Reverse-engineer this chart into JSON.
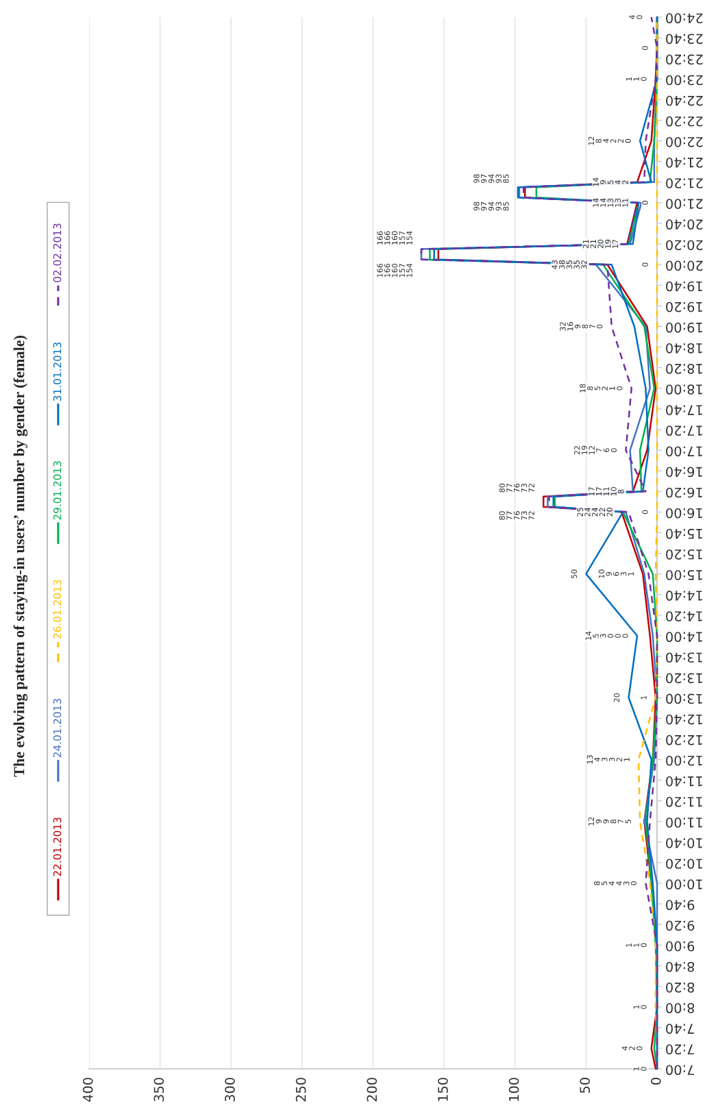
{
  "chart_data": {
    "type": "line",
    "orientation": "horizontal",
    "title": "The evolving pattern of staying-in users’ number by gender (female)",
    "x": [
      7,
      7.3333,
      8,
      9,
      10,
      11,
      12,
      13,
      14,
      15,
      16,
      16.0833,
      16.25,
      16.3333,
      17,
      18,
      19,
      20,
      20.0833,
      20.25,
      20.3333,
      21,
      21.0833,
      21.25,
      21.3333,
      22,
      23,
      23.5,
      24
    ],
    "series": [
      {
        "name": "22.01.2013",
        "color": "#c00000",
        "line_style": "solid",
        "values": [
          1,
          4,
          0,
          0,
          4,
          9,
          3,
          1,
          5,
          10,
          25,
          80,
          80,
          17,
          7,
          1,
          7,
          35,
          154,
          154,
          21,
          14,
          93,
          93,
          14,
          4,
          1,
          0,
          0
        ]
      },
      {
        "name": "24.01.2013",
        "color": "#4472c4",
        "line_style": "solid",
        "values": [
          0,
          0,
          0,
          0,
          0,
          9,
          2,
          0,
          3,
          9,
          22,
          77,
          77,
          17,
          19,
          5,
          8,
          43,
          166,
          166,
          19,
          11,
          97,
          97,
          2,
          2,
          0,
          0,
          0
        ]
      },
      {
        "name": "26.01.2013",
        "color": "#ffc000",
        "line_style": "dashed",
        "values": [
          0,
          0,
          1,
          1,
          5,
          12,
          13,
          1,
          0,
          1,
          0,
          0,
          0,
          0,
          0,
          0,
          0,
          0,
          0,
          0,
          0,
          0,
          0,
          0,
          0,
          0,
          0,
          0,
          0
        ]
      },
      {
        "name": "29.01.2013",
        "color": "#00b050",
        "line_style": "solid",
        "values": [
          0,
          2,
          0,
          1,
          4,
          8,
          3,
          0,
          0,
          3,
          24,
          72,
          72,
          11,
          12,
          2,
          9,
          38,
          160,
          160,
          20,
          13,
          85,
          85,
          5,
          2,
          0,
          0,
          0
        ]
      },
      {
        "name": "31.01.2013",
        "color": "#0070c0",
        "line_style": "solid",
        "values": [
          0,
          0,
          0,
          0,
          3,
          7,
          4,
          20,
          14,
          50,
          24,
          73,
          73,
          10,
          6,
          8,
          16,
          32,
          157,
          157,
          17,
          13,
          98,
          98,
          4,
          12,
          0,
          0,
          0
        ]
      },
      {
        "name": "02.02.2013",
        "color": "#7030a0",
        "line_style": "dashed",
        "values": [
          0,
          0,
          0,
          0,
          8,
          5,
          1,
          0,
          0,
          6,
          20,
          76,
          76,
          8,
          22,
          18,
          32,
          35,
          166,
          166,
          21,
          14,
          94,
          94,
          9,
          8,
          1,
          0,
          4
        ]
      }
    ],
    "xlim": [
      400,
      0
    ],
    "xticks": [
      0,
      50,
      100,
      150,
      200,
      250,
      300,
      350,
      400
    ],
    "ylim": [
      7,
      24
    ],
    "yticks": [
      {
        "value": 7,
        "label": "7:00"
      },
      {
        "value": 7.3333,
        "label": "7:20"
      },
      {
        "value": 7.6667,
        "label": "7:40"
      },
      {
        "value": 8,
        "label": "8:00"
      },
      {
        "value": 8.3333,
        "label": "8:20"
      },
      {
        "value": 8.6667,
        "label": "8:40"
      },
      {
        "value": 9,
        "label": "9:00"
      },
      {
        "value": 9.3333,
        "label": "9:20"
      },
      {
        "value": 9.6667,
        "label": "9:40"
      },
      {
        "value": 10,
        "label": "10:00"
      },
      {
        "value": 10.3333,
        "label": "10:20"
      },
      {
        "value": 10.6667,
        "label": "10:40"
      },
      {
        "value": 11,
        "label": "11:00"
      },
      {
        "value": 11.3333,
        "label": "11:20"
      },
      {
        "value": 11.6667,
        "label": "11:40"
      },
      {
        "value": 12,
        "label": "12:00"
      },
      {
        "value": 12.3333,
        "label": "12:20"
      },
      {
        "value": 12.6667,
        "label": "12:40"
      },
      {
        "value": 13,
        "label": "13:00"
      },
      {
        "value": 13.3333,
        "label": "13:20"
      },
      {
        "value": 13.6667,
        "label": "13:40"
      },
      {
        "value": 14,
        "label": "14:00"
      },
      {
        "value": 14.3333,
        "label": "14:20"
      },
      {
        "value": 14.6667,
        "label": "14:40"
      },
      {
        "value": 15,
        "label": "15:00"
      },
      {
        "value": 15.3333,
        "label": "15:20"
      },
      {
        "value": 15.6667,
        "label": "15:40"
      },
      {
        "value": 16,
        "label": "16:00"
      },
      {
        "value": 16.3333,
        "label": "16:20"
      },
      {
        "value": 16.6667,
        "label": "16:40"
      },
      {
        "value": 17,
        "label": "17:00"
      },
      {
        "value": 17.3333,
        "label": "17:20"
      },
      {
        "value": 17.6667,
        "label": "17:40"
      },
      {
        "value": 18,
        "label": "18:00"
      },
      {
        "value": 18.3333,
        "label": "18:20"
      },
      {
        "value": 18.6667,
        "label": "18:40"
      },
      {
        "value": 19,
        "label": "19:00"
      },
      {
        "value": 19.3333,
        "label": "19:20"
      },
      {
        "value": 19.6667,
        "label": "19:40"
      },
      {
        "value": 20,
        "label": "20:00"
      },
      {
        "value": 20.3333,
        "label": "20:20"
      },
      {
        "value": 20.6667,
        "label": "20:40"
      },
      {
        "value": 21,
        "label": "21:00"
      },
      {
        "value": 21.3333,
        "label": "21:20"
      },
      {
        "value": 21.6667,
        "label": "21:40"
      },
      {
        "value": 22,
        "label": "22:00"
      },
      {
        "value": 22.3333,
        "label": "22:20"
      },
      {
        "value": 22.6667,
        "label": "22:40"
      },
      {
        "value": 23,
        "label": "23:00"
      },
      {
        "value": 23.3333,
        "label": "23:20"
      },
      {
        "value": 23.6667,
        "label": "23:40"
      },
      {
        "value": 24,
        "label": "24:00"
      }
    ],
    "grid": "x",
    "legend": "left",
    "annotations": [
      {
        "text": "1\n0",
        "y": 7,
        "x": 1
      },
      {
        "text": "4\n2\n0",
        "y": 7.3333,
        "x": 4
      },
      {
        "text": "1\n0",
        "y": 8,
        "x": 1
      },
      {
        "text": "1\n1\n0",
        "y": 9,
        "x": 1
      },
      {
        "text": "8\n5\n4\n4\n3\n0",
        "y": 10,
        "x": 8
      },
      {
        "text": "12\n9\n9\n8\n7\n5",
        "y": 11,
        "x": 12
      },
      {
        "text": "13\n4\n3\n3\n2\n1",
        "y": 12,
        "x": 13
      },
      {
        "text": "20",
        "y": 13,
        "x": 20
      },
      {
        "text": "1",
        "y": 13,
        "x": 1
      },
      {
        "text": "14\n5\n3\n0\n0\n0",
        "y": 14,
        "x": 14
      },
      {
        "text": "50",
        "y": 15,
        "x": 50
      },
      {
        "text": "10\n9\n6\n3\n1",
        "y": 15,
        "x": 10
      },
      {
        "text": "25\n24\n24\n22\n20",
        "y": 16,
        "x": 25
      },
      {
        "text": "0",
        "y": 16,
        "x": 0
      },
      {
        "text": "80\n77\n76\n73\n72",
        "y": 16.0833,
        "x": 80
      },
      {
        "text": "80\n77\n76\n73\n72",
        "y": 16.25,
        "x": 80
      },
      {
        "text": "17\n17\n11\n10\n8",
        "y": 16.3333,
        "x": 17
      },
      {
        "text": "22\n19\n12\n7\n6\n0",
        "y": 17,
        "x": 22
      },
      {
        "text": "18\n8\n5\n2\n1\n0",
        "y": 18,
        "x": 18
      },
      {
        "text": "32\n16\n9\n8\n7\n0",
        "y": 19,
        "x": 32
      },
      {
        "text": "43\n38\n35\n35\n32",
        "y": 20,
        "x": 43
      },
      {
        "text": "0",
        "y": 20,
        "x": 0
      },
      {
        "text": "166\n166\n160\n157\n154",
        "y": 20.0833,
        "x": 166
      },
      {
        "text": "166\n166\n160\n157\n154",
        "y": 20.25,
        "x": 166
      },
      {
        "text": "21\n21\n20\n19\n17",
        "y": 20.3333,
        "x": 21
      },
      {
        "text": "14\n14\n13\n13\n11",
        "y": 21,
        "x": 14
      },
      {
        "text": "0",
        "y": 21,
        "x": 0
      },
      {
        "text": "98\n97\n94\n93\n85",
        "y": 21.0833,
        "x": 98
      },
      {
        "text": "98\n97\n94\n93\n85",
        "y": 21.25,
        "x": 98
      },
      {
        "text": "14\n9\n5\n4\n2",
        "y": 21.3333,
        "x": 14
      },
      {
        "text": "12\n8\n4\n2\n2\n0",
        "y": 22,
        "x": 12
      },
      {
        "text": "1\n1\n0",
        "y": 23,
        "x": 1
      },
      {
        "text": "0",
        "y": 23.5,
        "x": 0
      },
      {
        "text": "4\n0",
        "y": 24,
        "x": 4
      }
    ]
  }
}
